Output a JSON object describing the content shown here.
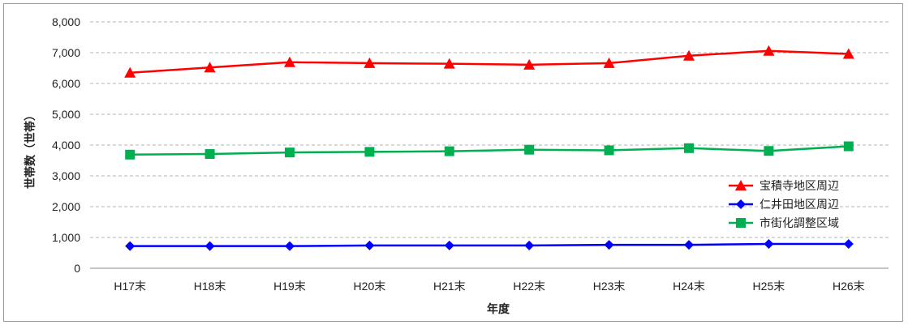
{
  "chart_data": {
    "type": "line",
    "title": "",
    "xlabel": "年度",
    "ylabel": "世帯数（世帯）",
    "categories": [
      "H17末",
      "H18末",
      "H19末",
      "H20末",
      "H21末",
      "H22末",
      "H23末",
      "H24末",
      "H25末",
      "H26末"
    ],
    "ylim": [
      0,
      8000
    ],
    "yticks": [
      0,
      1000,
      2000,
      3000,
      4000,
      5000,
      6000,
      7000,
      8000
    ],
    "ytick_labels": [
      "0",
      "1,000",
      "2,000",
      "3,000",
      "4,000",
      "5,000",
      "6,000",
      "7,000",
      "8,000"
    ],
    "grid": "horizontal dashed",
    "legend_position": "right",
    "series": [
      {
        "name": "宝積寺地区周辺",
        "color": "#ff0000",
        "marker": "triangle",
        "values": [
          6350,
          6520,
          6690,
          6660,
          6640,
          6610,
          6660,
          6900,
          7060,
          6960
        ]
      },
      {
        "name": "仁井田地区周辺",
        "color": "#0000ff",
        "marker": "diamond",
        "values": [
          720,
          720,
          720,
          740,
          740,
          740,
          760,
          760,
          790,
          790
        ]
      },
      {
        "name": "市街化調整区域",
        "color": "#00b050",
        "marker": "square",
        "values": [
          3690,
          3710,
          3760,
          3780,
          3800,
          3850,
          3830,
          3900,
          3810,
          3960
        ]
      }
    ]
  }
}
